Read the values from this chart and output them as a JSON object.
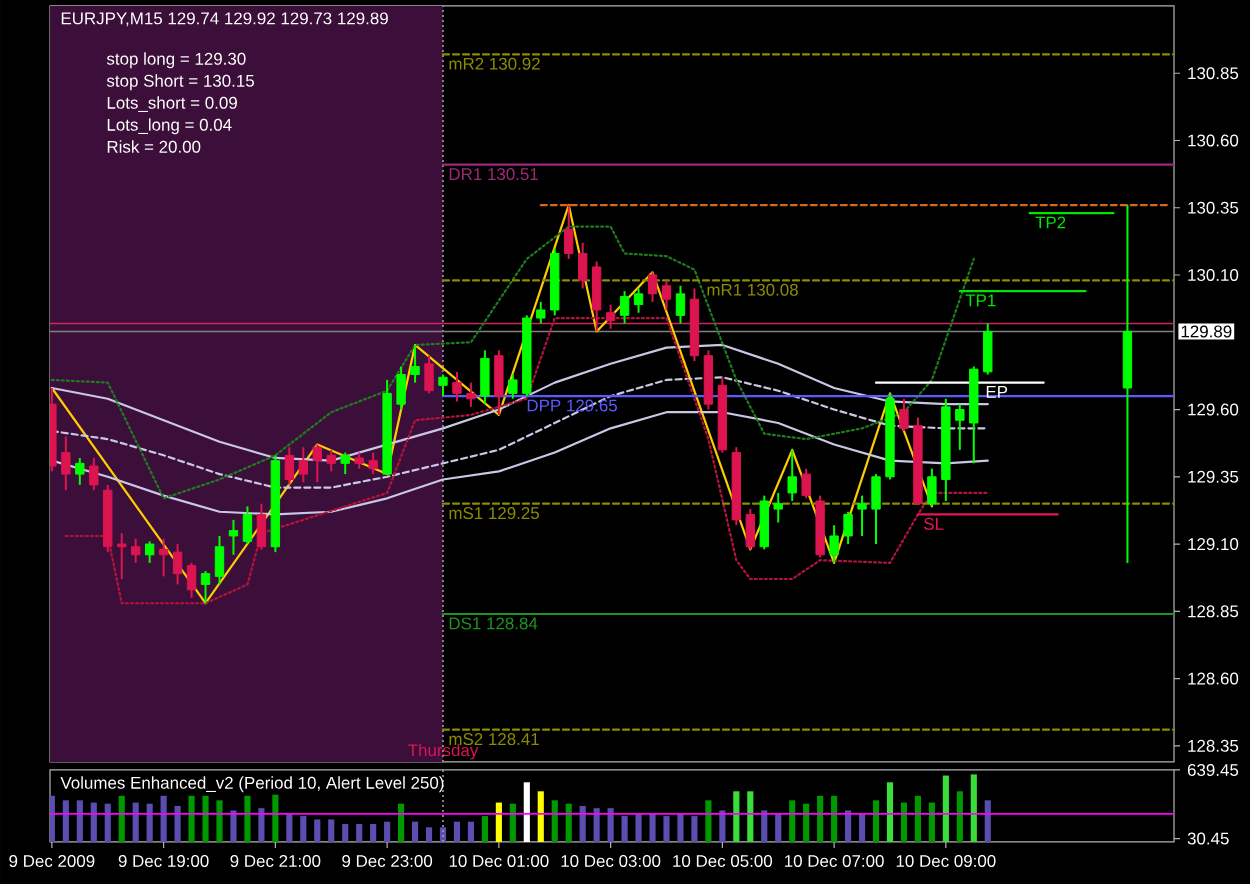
{
  "chart_data": [
    {
      "type": "candlestick",
      "title": "EURJPY,M15  129.74 129.92 129.73 129.89",
      "x": [
        "2009-12-09T17:00",
        "2009-12-09T17:15",
        "2009-12-09T17:30",
        "2009-12-09T17:45",
        "2009-12-09T18:00",
        "2009-12-09T18:15",
        "2009-12-09T18:30",
        "2009-12-09T18:45",
        "2009-12-09T19:00",
        "2009-12-09T19:15",
        "2009-12-09T19:30",
        "2009-12-09T19:45",
        "2009-12-09T20:00",
        "2009-12-09T20:15",
        "2009-12-09T20:30",
        "2009-12-09T20:45",
        "2009-12-09T21:00",
        "2009-12-09T21:15",
        "2009-12-09T21:30",
        "2009-12-09T21:45",
        "2009-12-09T22:00",
        "2009-12-09T22:15",
        "2009-12-09T22:30",
        "2009-12-09T22:45",
        "2009-12-09T23:00",
        "2009-12-09T23:15",
        "2009-12-09T23:30",
        "2009-12-09T23:45",
        "2009-12-10T00:00",
        "2009-12-10T00:15",
        "2009-12-10T00:30",
        "2009-12-10T00:45",
        "2009-12-10T01:00",
        "2009-12-10T01:15",
        "2009-12-10T01:30",
        "2009-12-10T01:45",
        "2009-12-10T02:00",
        "2009-12-10T02:15",
        "2009-12-10T02:30",
        "2009-12-10T02:45",
        "2009-12-10T03:00",
        "2009-12-10T03:15",
        "2009-12-10T03:30",
        "2009-12-10T03:45",
        "2009-12-10T04:00",
        "2009-12-10T04:15",
        "2009-12-10T04:30",
        "2009-12-10T04:45",
        "2009-12-10T05:00",
        "2009-12-10T05:15",
        "2009-12-10T05:30",
        "2009-12-10T05:45",
        "2009-12-10T06:00",
        "2009-12-10T06:15",
        "2009-12-10T06:30",
        "2009-12-10T06:45",
        "2009-12-10T07:00",
        "2009-12-10T07:15",
        "2009-12-10T07:30",
        "2009-12-10T07:45",
        "2009-12-10T08:00",
        "2009-12-10T08:15",
        "2009-12-10T08:30",
        "2009-12-10T08:45",
        "2009-12-10T09:00",
        "2009-12-10T09:15",
        "2009-12-10T09:30",
        "2009-12-10T09:45"
      ],
      "ohlc": [
        [
          129.62,
          129.68,
          129.37,
          129.39
        ],
        [
          129.44,
          129.5,
          129.3,
          129.36
        ],
        [
          129.36,
          129.42,
          129.32,
          129.4
        ],
        [
          129.39,
          129.42,
          129.3,
          129.32
        ],
        [
          129.3,
          129.32,
          129.07,
          129.09
        ],
        [
          129.1,
          129.14,
          128.97,
          129.09
        ],
        [
          129.09,
          129.12,
          129.03,
          129.06
        ],
        [
          129.06,
          129.11,
          129.03,
          129.1
        ],
        [
          129.08,
          129.12,
          128.98,
          129.06
        ],
        [
          129.07,
          129.1,
          128.95,
          128.99
        ],
        [
          129.02,
          129.03,
          128.9,
          128.93
        ],
        [
          128.95,
          129.0,
          128.88,
          128.99
        ],
        [
          128.98,
          129.13,
          128.95,
          129.09
        ],
        [
          129.13,
          129.19,
          129.06,
          129.15
        ],
        [
          129.11,
          129.24,
          129.1,
          129.21
        ],
        [
          129.21,
          129.25,
          129.08,
          129.09
        ],
        [
          129.09,
          129.43,
          129.07,
          129.41
        ],
        [
          129.43,
          129.46,
          129.32,
          129.34
        ],
        [
          129.41,
          129.46,
          129.33,
          129.36
        ],
        [
          129.46,
          129.47,
          129.33,
          129.41
        ],
        [
          129.43,
          129.45,
          129.37,
          129.4
        ],
        [
          129.4,
          129.44,
          129.36,
          129.43
        ],
        [
          129.42,
          129.44,
          129.38,
          129.4
        ],
        [
          129.41,
          129.44,
          129.36,
          129.38
        ],
        [
          129.36,
          129.71,
          129.36,
          129.66
        ],
        [
          129.62,
          129.76,
          129.6,
          129.73
        ],
        [
          129.73,
          129.84,
          129.7,
          129.76
        ],
        [
          129.77,
          129.8,
          129.66,
          129.67
        ],
        [
          129.69,
          129.73,
          129.65,
          129.72
        ],
        [
          129.7,
          129.74,
          129.63,
          129.66
        ],
        [
          129.66,
          129.7,
          129.61,
          129.64
        ],
        [
          129.65,
          129.82,
          129.62,
          129.79
        ],
        [
          129.8,
          129.82,
          129.58,
          129.65
        ],
        [
          129.66,
          129.73,
          129.64,
          129.71
        ],
        [
          129.66,
          129.95,
          129.65,
          129.94
        ],
        [
          129.94,
          130.0,
          129.92,
          129.97
        ],
        [
          129.97,
          130.2,
          129.95,
          130.18
        ],
        [
          130.27,
          130.36,
          130.16,
          130.18
        ],
        [
          130.18,
          130.22,
          130.05,
          130.08
        ],
        [
          130.13,
          130.15,
          129.89,
          129.97
        ],
        [
          129.96,
          129.99,
          129.9,
          129.93
        ],
        [
          129.95,
          130.04,
          129.92,
          130.02
        ],
        [
          129.99,
          130.05,
          129.96,
          130.03
        ],
        [
          130.1,
          130.11,
          130.0,
          130.03
        ],
        [
          130.06,
          130.08,
          129.97,
          130.01
        ],
        [
          129.95,
          130.06,
          129.92,
          130.03
        ],
        [
          130.01,
          130.05,
          129.78,
          129.8
        ],
        [
          129.8,
          129.82,
          129.6,
          129.62
        ],
        [
          129.69,
          129.72,
          129.44,
          129.45
        ],
        [
          129.44,
          129.46,
          129.17,
          129.19
        ],
        [
          129.21,
          129.23,
          129.08,
          129.09
        ],
        [
          129.09,
          129.28,
          129.08,
          129.26
        ],
        [
          129.23,
          129.29,
          129.18,
          129.25
        ],
        [
          129.29,
          129.45,
          129.26,
          129.35
        ],
        [
          129.36,
          129.38,
          129.27,
          129.28
        ],
        [
          129.26,
          129.28,
          129.05,
          129.06
        ],
        [
          129.06,
          129.17,
          129.03,
          129.13
        ],
        [
          129.13,
          129.22,
          129.1,
          129.21
        ],
        [
          129.23,
          129.28,
          129.13,
          129.25
        ],
        [
          129.23,
          129.36,
          129.1,
          129.35
        ],
        [
          129.35,
          129.66,
          129.34,
          129.64
        ],
        [
          129.6,
          129.64,
          129.52,
          129.53
        ],
        [
          129.54,
          129.57,
          129.25,
          129.25
        ],
        [
          129.25,
          129.38,
          129.24,
          129.35
        ],
        [
          129.34,
          129.64,
          129.26,
          129.61
        ],
        [
          129.56,
          129.62,
          129.45,
          129.6
        ],
        [
          129.55,
          129.76,
          129.4,
          129.75
        ],
        [
          129.74,
          129.92,
          129.73,
          129.89
        ]
      ],
      "colors": [
        "#dc1450",
        "#dc1450",
        "#00ff00",
        "#dc1450",
        "#dc1450",
        "#dc1450",
        "#dc1450",
        "#00ff00",
        "#dc1450",
        "#dc1450",
        "#dc1450",
        "#00ff00",
        "#00ff00",
        "#00ff00",
        "#00ff00",
        "#dc1450",
        "#00ff00",
        "#dc1450",
        "#dc1450",
        "#dc1450",
        "#dc1450",
        "#00ff00",
        "#dc1450",
        "#dc1450",
        "#00ff00",
        "#00ff00",
        "#00ff00",
        "#dc1450",
        "#00ff00",
        "#dc1450",
        "#dc1450",
        "#00ff00",
        "#dc1450",
        "#00ff00",
        "#00ff00",
        "#00ff00",
        "#00ff00",
        "#dc1450",
        "#dc1450",
        "#dc1450",
        "#dc1450",
        "#00ff00",
        "#00ff00",
        "#dc1450",
        "#dc1450",
        "#00ff00",
        "#dc1450",
        "#dc1450",
        "#dc1450",
        "#dc1450",
        "#dc1450",
        "#00ff00",
        "#00ff00",
        "#00ff00",
        "#dc1450",
        "#dc1450",
        "#00ff00",
        "#00ff00",
        "#00ff00",
        "#00ff00",
        "#00ff00",
        "#dc1450",
        "#dc1450",
        "#00ff00",
        "#00ff00",
        "#00ff00",
        "#00ff00",
        "#00ff00"
      ],
      "xlim": [
        "2009-12-09T16:58",
        "2009-12-10T13:05"
      ],
      "ylim": [
        128.29,
        131.1
      ],
      "yticks": [
        130.85,
        {
          "value": 130.6,
          "label": "130.60"
        },
        130.35,
        {
          "value": 130.1,
          "label": "130.10"
        },
        {
          "value": 129.6,
          "label": "129.60"
        },
        129.35,
        {
          "value": 129.1,
          "label": "129.10"
        },
        128.85,
        {
          "value": 128.6,
          "label": "128.60"
        },
        128.35
      ],
      "tick_labels": "y",
      "annotations": [
        "stop long = 129.30",
        "stop Short = 130.15",
        "Lots_short = 0.09",
        "Lots_long = 0.04",
        "Risk = 20.00"
      ],
      "bands": [
        {
          "axis": "x",
          "from": "2009-12-09T16:58",
          "to": "2009-12-10T00:00",
          "color": "#3c0f3a"
        }
      ],
      "ref_lines": [
        {
          "axis": "x",
          "value": "2009-12-10T00:00",
          "label": "Thursday",
          "color": "#a0a0a0",
          "line_style": "dotted"
        },
        {
          "axis": "y",
          "value": 129.92,
          "color": "#c8285a"
        },
        {
          "axis": "y",
          "value": 129.89,
          "label": "129.89",
          "color": "#808080"
        }
      ],
      "series": [
        {
          "type": "line",
          "color": "#ffcc00",
          "x": [
            "2009-12-09T17:00",
            "2009-12-09T19:45",
            "2009-12-09T21:45",
            "2009-12-09T23:00",
            "2009-12-09T23:30",
            "2009-12-10T01:00",
            "2009-12-10T02:15",
            "2009-12-10T02:45",
            "2009-12-10T03:45",
            "2009-12-10T05:30",
            "2009-12-10T06:15",
            "2009-12-10T07:00",
            "2009-12-10T08:00",
            "2009-12-10T08:45"
          ],
          "values": [
            129.68,
            128.88,
            129.47,
            129.36,
            129.84,
            129.58,
            130.36,
            129.89,
            130.11,
            129.08,
            129.45,
            129.03,
            129.66,
            129.24
          ]
        },
        {
          "type": "line",
          "color": "#c8c8e6",
          "x": [
            "2009-12-09T17:00",
            "2009-12-09T18:00",
            "2009-12-09T19:00",
            "2009-12-09T20:00",
            "2009-12-09T21:00",
            "2009-12-09T22:00",
            "2009-12-09T23:00",
            "2009-12-10T00:00",
            "2009-12-10T01:00",
            "2009-12-10T02:00",
            "2009-12-10T03:00",
            "2009-12-10T04:00",
            "2009-12-10T05:00",
            "2009-12-10T06:00",
            "2009-12-10T07:00",
            "2009-12-10T08:00",
            "2009-12-10T09:00",
            "2009-12-10T09:45"
          ],
          "values": [
            129.68,
            129.64,
            129.56,
            129.48,
            129.42,
            129.41,
            129.47,
            129.53,
            129.6,
            129.7,
            129.77,
            129.83,
            129.84,
            129.77,
            129.68,
            129.63,
            129.62,
            129.62
          ]
        },
        {
          "type": "line",
          "color": "#c8c8e6",
          "line_style": "dashed",
          "x": [
            "2009-12-09T17:00",
            "2009-12-09T18:00",
            "2009-12-09T19:00",
            "2009-12-09T20:00",
            "2009-12-09T21:00",
            "2009-12-09T22:00",
            "2009-12-09T23:00",
            "2009-12-10T00:00",
            "2009-12-10T01:00",
            "2009-12-10T02:00",
            "2009-12-10T03:00",
            "2009-12-10T04:00",
            "2009-12-10T05:00",
            "2009-12-10T06:00",
            "2009-12-10T07:00",
            "2009-12-10T08:00",
            "2009-12-10T09:00",
            "2009-12-10T09:45"
          ],
          "values": [
            129.52,
            129.49,
            129.43,
            129.36,
            129.31,
            129.31,
            129.35,
            129.4,
            129.45,
            129.55,
            129.65,
            129.71,
            129.72,
            129.67,
            129.6,
            129.54,
            129.53,
            129.53
          ]
        },
        {
          "type": "line",
          "color": "#c8c8e6",
          "x": [
            "2009-12-09T17:00",
            "2009-12-09T18:00",
            "2009-12-09T19:00",
            "2009-12-09T20:00",
            "2009-12-09T21:00",
            "2009-12-09T22:00",
            "2009-12-09T23:00",
            "2009-12-10T00:00",
            "2009-12-10T01:00",
            "2009-12-10T02:00",
            "2009-12-10T03:00",
            "2009-12-10T04:00",
            "2009-12-10T05:00",
            "2009-12-10T06:00",
            "2009-12-10T07:00",
            "2009-12-10T08:00",
            "2009-12-10T09:00",
            "2009-12-10T09:45"
          ],
          "values": [
            129.41,
            129.35,
            129.28,
            129.22,
            129.21,
            129.22,
            129.27,
            129.34,
            129.37,
            129.44,
            129.53,
            129.59,
            129.59,
            129.55,
            129.47,
            129.41,
            129.4,
            129.41
          ]
        },
        {
          "type": "line",
          "color": "#1e7d1e",
          "line_style": "dotted",
          "x": [
            "2009-12-09T17:00",
            "2009-12-09T18:00",
            "2009-12-09T19:00",
            "2009-12-09T20:00",
            "2009-12-09T21:00",
            "2009-12-09T22:00",
            "2009-12-09T23:00",
            "2009-12-09T23:30",
            "2009-12-10T00:30",
            "2009-12-10T01:30",
            "2009-12-10T02:15",
            "2009-12-10T03:00",
            "2009-12-10T03:15",
            "2009-12-10T04:00",
            "2009-12-10T04:30",
            "2009-12-10T05:15",
            "2009-12-10T05:45",
            "2009-12-10T06:30",
            "2009-12-10T07:30",
            "2009-12-10T08:15",
            "2009-12-10T08:45",
            "2009-12-10T09:30"
          ],
          "values": [
            129.71,
            129.7,
            129.27,
            129.34,
            129.43,
            129.59,
            129.67,
            129.84,
            129.85,
            130.16,
            130.28,
            130.28,
            130.18,
            130.17,
            130.12,
            129.71,
            129.51,
            129.49,
            129.53,
            129.59,
            129.71,
            130.16
          ]
        },
        {
          "type": "line",
          "color": "#b4143c",
          "line_style": "dotted",
          "x": [
            "2009-12-09T17:15",
            "2009-12-09T18:00",
            "2009-12-09T18:15",
            "2009-12-09T19:45",
            "2009-12-09T20:30",
            "2009-12-09T20:45",
            "2009-12-09T23:00",
            "2009-12-09T23:30",
            "2009-12-10T00:30",
            "2009-12-10T01:30",
            "2009-12-10T02:00",
            "2009-12-10T04:00",
            "2009-12-10T04:45",
            "2009-12-10T05:15",
            "2009-12-10T05:30",
            "2009-12-10T06:15",
            "2009-12-10T06:45",
            "2009-12-10T08:00",
            "2009-12-10T08:30",
            "2009-12-10T08:45",
            "2009-12-10T09:45"
          ],
          "values": [
            129.13,
            129.13,
            128.88,
            128.88,
            128.95,
            129.14,
            129.29,
            129.56,
            129.58,
            129.64,
            129.94,
            129.94,
            129.49,
            129.04,
            128.97,
            128.97,
            129.04,
            129.03,
            129.21,
            129.29,
            129.29
          ]
        },
        {
          "type": "line",
          "color": "#d2691e",
          "line_style": "dashed",
          "x": [
            "2009-12-10T01:45",
            "2009-12-10T13:00"
          ],
          "values": [
            130.36,
            130.36
          ]
        },
        {
          "type": "line",
          "name": "mR2 130.92",
          "color": "#8c8c00",
          "line_style": "dashed",
          "x": [
            "2009-12-10T00:00",
            "2009-12-10T13:05"
          ],
          "values": [
            130.92,
            130.92
          ]
        },
        {
          "type": "line",
          "name": "DR1 130.51",
          "color": "#a02878",
          "x": [
            "2009-12-10T00:00",
            "2009-12-10T13:05"
          ],
          "values": [
            130.51,
            130.51
          ]
        },
        {
          "type": "line",
          "name": "mR1 130.08",
          "color": "#8c8c00",
          "line_style": "dashed",
          "x": [
            "2009-12-10T00:00",
            "2009-12-10T13:05"
          ],
          "values": [
            130.08,
            130.08
          ]
        },
        {
          "type": "line",
          "name": "DPP 129.65",
          "color": "#5a5aff",
          "x": [
            "2009-12-10T00:00",
            "2009-12-10T13:05"
          ],
          "values": [
            129.65,
            129.65
          ]
        },
        {
          "type": "line",
          "name": "mS1 129.25",
          "color": "#8c8c00",
          "line_style": "dashed",
          "x": [
            "2009-12-10T00:00",
            "2009-12-10T13:05"
          ],
          "values": [
            129.25,
            129.25
          ]
        },
        {
          "type": "line",
          "name": "DS1 128.84",
          "color": "#1e961e",
          "x": [
            "2009-12-10T00:00",
            "2009-12-10T13:05"
          ],
          "values": [
            128.84,
            128.84
          ]
        },
        {
          "type": "line",
          "name": "mS2 128.41",
          "color": "#8c8c00",
          "line_style": "dashed",
          "x": [
            "2009-12-10T00:00",
            "2009-12-10T13:05"
          ],
          "values": [
            128.41,
            128.41
          ]
        },
        {
          "type": "line",
          "name": "EP",
          "color": "#ffffff",
          "x": [
            "2009-12-10T07:45",
            "2009-12-10T10:45"
          ],
          "values": [
            129.7,
            129.7
          ]
        },
        {
          "type": "line",
          "name": "TP1",
          "color": "#00e600",
          "x": [
            "2009-12-10T09:15",
            "2009-12-10T11:30"
          ],
          "values": [
            130.04,
            130.04
          ]
        },
        {
          "type": "line",
          "name": "TP2",
          "color": "#00e600",
          "x": [
            "2009-12-10T10:30",
            "2009-12-10T12:00"
          ],
          "values": [
            130.33,
            130.33
          ]
        },
        {
          "type": "line",
          "name": "SL",
          "color": "#e6145a",
          "x": [
            "2009-12-10T08:30",
            "2009-12-10T11:00"
          ],
          "values": [
            129.21,
            129.21
          ]
        },
        {
          "type": "candlestick",
          "color": "#00ff00",
          "x": [
            "2009-12-10T12:15"
          ],
          "ohlc": [
            [
              129.68,
              130.36,
              129.03,
              129.89
            ]
          ]
        }
      ]
    },
    {
      "type": "bar",
      "title": "Volumes Enhanced_v2  (Period 10, Alert Level 250)",
      "x": [
        "2009-12-09T17:00",
        "2009-12-09T17:15",
        "2009-12-09T17:30",
        "2009-12-09T17:45",
        "2009-12-09T18:00",
        "2009-12-09T18:15",
        "2009-12-09T18:30",
        "2009-12-09T18:45",
        "2009-12-09T19:00",
        "2009-12-09T19:15",
        "2009-12-09T19:30",
        "2009-12-09T19:45",
        "2009-12-09T20:00",
        "2009-12-09T20:15",
        "2009-12-09T20:30",
        "2009-12-09T20:45",
        "2009-12-09T21:00",
        "2009-12-09T21:15",
        "2009-12-09T21:30",
        "2009-12-09T21:45",
        "2009-12-09T22:00",
        "2009-12-09T22:15",
        "2009-12-09T22:30",
        "2009-12-09T22:45",
        "2009-12-09T23:00",
        "2009-12-09T23:15",
        "2009-12-09T23:30",
        "2009-12-09T23:45",
        "2009-12-10T00:00",
        "2009-12-10T00:15",
        "2009-12-10T00:30",
        "2009-12-10T00:45",
        "2009-12-10T01:00",
        "2009-12-10T01:15",
        "2009-12-10T01:30",
        "2009-12-10T01:45",
        "2009-12-10T02:00",
        "2009-12-10T02:15",
        "2009-12-10T02:30",
        "2009-12-10T02:45",
        "2009-12-10T03:00",
        "2009-12-10T03:15",
        "2009-12-10T03:30",
        "2009-12-10T03:45",
        "2009-12-10T04:00",
        "2009-12-10T04:15",
        "2009-12-10T04:30",
        "2009-12-10T04:45",
        "2009-12-10T05:00",
        "2009-12-10T05:15",
        "2009-12-10T05:30",
        "2009-12-10T05:45",
        "2009-12-10T06:00",
        "2009-12-10T06:15",
        "2009-12-10T06:30",
        "2009-12-10T06:45",
        "2009-12-10T07:00",
        "2009-12-10T07:15",
        "2009-12-10T07:30",
        "2009-12-10T07:45",
        "2009-12-10T08:00",
        "2009-12-10T08:15",
        "2009-12-10T08:30",
        "2009-12-10T08:45",
        "2009-12-10T09:00",
        "2009-12-10T09:15",
        "2009-12-10T09:30",
        "2009-12-10T09:45"
      ],
      "values": [
        410,
        370,
        370,
        350,
        340,
        410,
        350,
        340,
        410,
        320,
        410,
        410,
        370,
        280,
        410,
        300,
        420,
        250,
        230,
        200,
        200,
        160,
        160,
        160,
        180,
        340,
        180,
        130,
        130,
        180,
        180,
        230,
        350,
        340,
        530,
        450,
        370,
        340,
        320,
        300,
        300,
        230,
        250,
        250,
        230,
        250,
        230,
        370,
        280,
        450,
        450,
        280,
        250,
        370,
        340,
        410,
        410,
        280,
        250,
        370,
        530,
        350,
        410,
        350,
        590,
        450,
        600,
        370
      ],
      "colors": [
        "#5a4fb0",
        "#5a4fb0",
        "#5a4fb0",
        "#5a4fb0",
        "#5a4fb0",
        "#009a00",
        "#5a4fb0",
        "#5a4fb0",
        "#5a4fb0",
        "#5a4fb0",
        "#009a00",
        "#009a00",
        "#009a00",
        "#5a4fb0",
        "#009a00",
        "#5a4fb0",
        "#009a00",
        "#5a4fb0",
        "#5a4fb0",
        "#5a4fb0",
        "#5a4fb0",
        "#5a4fb0",
        "#5a4fb0",
        "#5a4fb0",
        "#5a4fb0",
        "#009a00",
        "#5a4fb0",
        "#5a4fb0",
        "#5a4fb0",
        "#5a4fb0",
        "#5a4fb0",
        "#009a00",
        "#ffff00",
        "#009a00",
        "#ffffff",
        "#ffff00",
        "#009a00",
        "#009a00",
        "#5a4fb0",
        "#5a4fb0",
        "#5a4fb0",
        "#5a4fb0",
        "#5a4fb0",
        "#5a4fb0",
        "#5a4fb0",
        "#5a4fb0",
        "#5a4fb0",
        "#009a00",
        "#5a4fb0",
        "#3ade3a",
        "#3ade3a",
        "#5a4fb0",
        "#5a4fb0",
        "#009a00",
        "#009a00",
        "#009a00",
        "#009a00",
        "#5a4fb0",
        "#5a4fb0",
        "#009a00",
        "#3ade3a",
        "#009a00",
        "#009a00",
        "#009a00",
        "#3ade3a",
        "#009a00",
        "#3ade3a",
        "#5a4fb0"
      ],
      "xlim": [
        "2009-12-09T16:58",
        "2009-12-10T13:05"
      ],
      "ylim": [
        0,
        639.45
      ],
      "yticks": [
        639.45,
        30.45
      ],
      "xticks": [
        {
          "value": "2009-12-09T17:00",
          "label": "9 Dec 2009"
        },
        {
          "value": "2009-12-09T19:00",
          "label": "9 Dec 19:00"
        },
        {
          "value": "2009-12-09T21:00",
          "label": "9 Dec 21:00"
        },
        {
          "value": "2009-12-09T23:00",
          "label": "9 Dec 23:00"
        },
        {
          "value": "2009-12-10T01:00",
          "label": "10 Dec 01:00"
        },
        {
          "value": "2009-12-10T03:00",
          "label": "10 Dec 03:00"
        },
        {
          "value": "2009-12-10T05:00",
          "label": "10 Dec 05:00"
        },
        {
          "value": "2009-12-10T07:00",
          "label": "10 Dec 07:00"
        },
        {
          "value": "2009-12-10T09:00",
          "label": "10 Dec 09:00"
        }
      ],
      "ref_lines": [
        {
          "axis": "y",
          "value": 250,
          "color": "#ff00ff"
        },
        {
          "axis": "x",
          "value": "2009-12-10T00:00",
          "color": "#a0a0a0",
          "line_style": "dotted"
        }
      ]
    }
  ]
}
